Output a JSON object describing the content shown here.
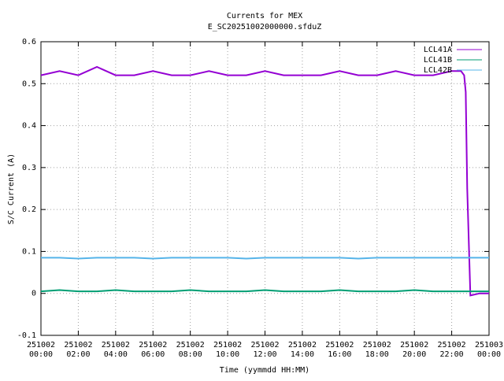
{
  "chart_data": {
    "type": "line",
    "title": "Currents for MEX",
    "subtitle": "E_SC20251002000000.sfduZ",
    "xlabel": "Time (yymmdd HH:MM)",
    "ylabel": "S/C Current (A)",
    "x": [
      "251002 00:00",
      "251002 01:00",
      "251002 02:00",
      "251002 03:00",
      "251002 04:00",
      "251002 05:00",
      "251002 06:00",
      "251002 07:00",
      "251002 08:00",
      "251002 09:00",
      "251002 10:00",
      "251002 11:00",
      "251002 12:00",
      "251002 13:00",
      "251002 14:00",
      "251002 15:00",
      "251002 16:00",
      "251002 17:00",
      "251002 18:00",
      "251002 19:00",
      "251002 20:00",
      "251002 21:00",
      "251002 22:00",
      "251002 22:30",
      "251002 22:40",
      "251002 22:45",
      "251002 22:50",
      "251002 23:00",
      "251002 23:30",
      "251003 00:00"
    ],
    "series": [
      {
        "name": "LCL41A",
        "color": "#9400d3",
        "values": [
          0.52,
          0.53,
          0.52,
          0.54,
          0.52,
          0.52,
          0.53,
          0.52,
          0.52,
          0.53,
          0.52,
          0.52,
          0.53,
          0.52,
          0.52,
          0.52,
          0.53,
          0.52,
          0.52,
          0.53,
          0.52,
          0.52,
          0.53,
          0.53,
          0.52,
          0.48,
          0.25,
          -0.005,
          0,
          0
        ]
      },
      {
        "name": "LCL41B",
        "color": "#009e73",
        "values": [
          0.005,
          0.008,
          0.005,
          0.005,
          0.008,
          0.005,
          0.005,
          0.005,
          0.008,
          0.005,
          0.005,
          0.005,
          0.008,
          0.005,
          0.005,
          0.005,
          0.008,
          0.005,
          0.005,
          0.005,
          0.008,
          0.005,
          0.005,
          0.005,
          0.005,
          0.005,
          0.005,
          0.005,
          0.005,
          0.005
        ]
      },
      {
        "name": "LCL42B",
        "color": "#56b4e9",
        "values": [
          0.085,
          0.085,
          0.083,
          0.085,
          0.085,
          0.085,
          0.083,
          0.085,
          0.085,
          0.085,
          0.085,
          0.083,
          0.085,
          0.085,
          0.085,
          0.085,
          0.085,
          0.083,
          0.085,
          0.085,
          0.085,
          0.085,
          0.085,
          0.085,
          0.085,
          0.085,
          0.085,
          0.085,
          0.085,
          0.085
        ]
      }
    ],
    "xlim": [
      "251002 00:00",
      "251003 00:00"
    ],
    "xticks": [
      "251002 00:00",
      "251002 02:00",
      "251002 04:00",
      "251002 06:00",
      "251002 08:00",
      "251002 10:00",
      "251002 12:00",
      "251002 14:00",
      "251002 16:00",
      "251002 18:00",
      "251002 20:00",
      "251002 22:00",
      "251003 00:00"
    ],
    "ylim": [
      -0.1,
      0.6
    ],
    "yticks": [
      -0.1,
      0,
      0.1,
      0.2,
      0.3,
      0.4,
      0.5,
      0.6
    ],
    "grid": true,
    "legend": "upper right"
  }
}
